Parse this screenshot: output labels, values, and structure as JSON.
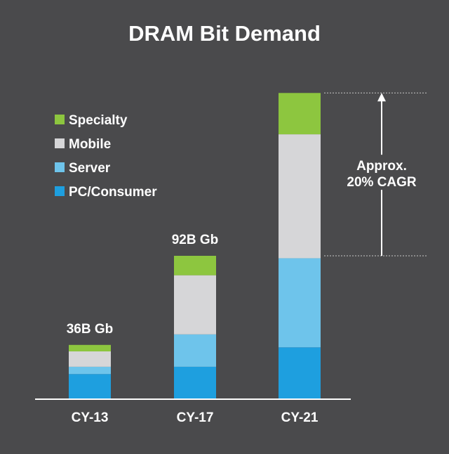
{
  "chart_data": {
    "type": "bar",
    "stacked": true,
    "title": "DRAM Bit Demand",
    "categories": [
      "CY-13",
      "CY-17",
      "CY-21"
    ],
    "series": [
      {
        "name": "PC/Consumer",
        "color": "#1e9fdf",
        "values": [
          3.1,
          4.0,
          6.4
        ]
      },
      {
        "name": "Server",
        "color": "#6ec4eb",
        "values": [
          0.9,
          4.0,
          11.0
        ]
      },
      {
        "name": "Mobile",
        "color": "#d6d6d8",
        "values": [
          1.9,
          7.3,
          15.3
        ]
      },
      {
        "name": "Specialty",
        "color": "#8dc63f",
        "values": [
          0.8,
          2.4,
          5.1
        ]
      }
    ],
    "ylim": [
      0,
      38
    ],
    "grid": false,
    "legend_placement": "top-left",
    "data_labels": [
      "36B Gb",
      "92B Gb",
      ""
    ],
    "annotation": {
      "line1": "Approx.",
      "line2": "20% CAGR"
    },
    "xlabel": "",
    "ylabel": ""
  }
}
